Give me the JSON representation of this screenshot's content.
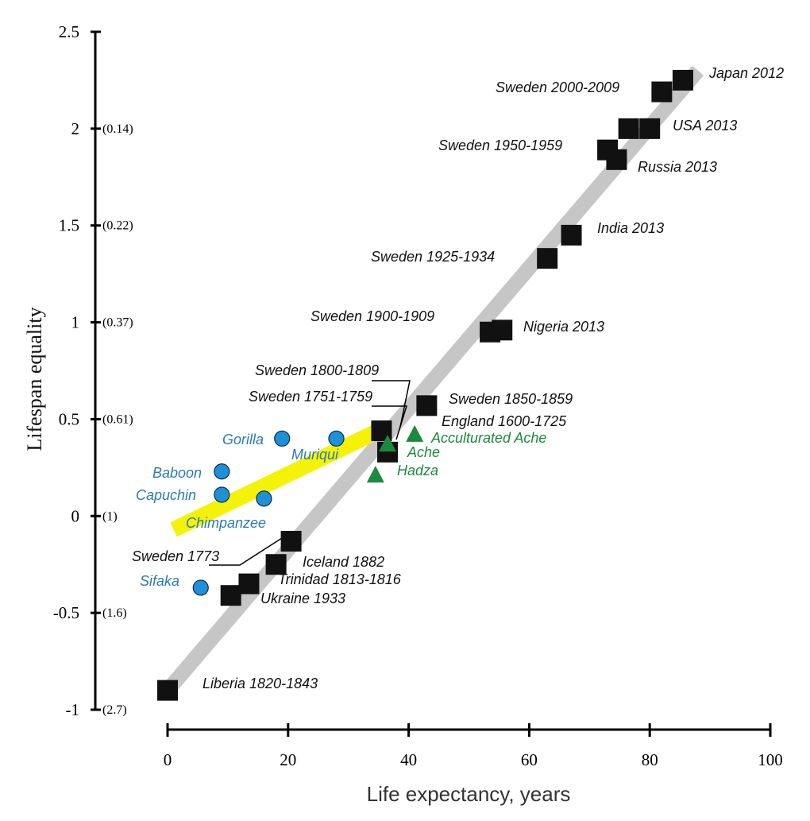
{
  "chart_data": {
    "type": "scatter",
    "xlabel": "Life expectancy, years",
    "ylabel": "Lifespan equality",
    "xlim": [
      0,
      100
    ],
    "ylim": [
      -1,
      2.5
    ],
    "x_ticks": [
      "0",
      "20",
      "40",
      "60",
      "80",
      "100"
    ],
    "y_ticks": [
      {
        "value": 2.5,
        "label": "2.5",
        "paren": ""
      },
      {
        "value": 2,
        "label": "2",
        "paren": "(0.14)"
      },
      {
        "value": 1.5,
        "label": "1.5",
        "paren": "(0.22)"
      },
      {
        "value": 1,
        "label": "1",
        "paren": "(0.37)"
      },
      {
        "value": 0.5,
        "label": "0.5",
        "paren": "(0.61)"
      },
      {
        "value": 0,
        "label": "0",
        "paren": "(1)"
      },
      {
        "value": -0.5,
        "label": "-0.5",
        "paren": "(1.6)"
      },
      {
        "value": -1,
        "label": "-1",
        "paren": "(2.7)"
      }
    ],
    "colors": {
      "human": "#111111",
      "primate": "#1e90d8",
      "primate_label": "#2a7ab8",
      "hunter_gatherer": "#1a8a3c",
      "human_trend": "#c6c6c6",
      "primate_trend": "#f5f20a"
    },
    "trend_lines": [
      {
        "name": "humans",
        "from": [
          0,
          -0.9
        ],
        "to": [
          88,
          2.3
        ]
      },
      {
        "name": "primates",
        "from": [
          1,
          -0.07
        ],
        "to": [
          35,
          0.44
        ]
      }
    ],
    "series": [
      {
        "name": "Human populations",
        "marker": "square",
        "points": [
          {
            "label": "Japan 2012",
            "x": 85.5,
            "y": 2.25
          },
          {
            "label": "Sweden 2000-2009",
            "x": 82,
            "y": 2.19
          },
          {
            "label": "USA 2013",
            "x": 80,
            "y": 2.0
          },
          {
            "label": "",
            "x": 76.5,
            "y": 2.0
          },
          {
            "label": "Sweden 1950-1959",
            "x": 73,
            "y": 1.89
          },
          {
            "label": "Russia 2013",
            "x": 74.5,
            "y": 1.84
          },
          {
            "label": "India 2013",
            "x": 67,
            "y": 1.45
          },
          {
            "label": "Sweden 1925-1934",
            "x": 63,
            "y": 1.33
          },
          {
            "label": "Nigeria 2013",
            "x": 55.5,
            "y": 0.96
          },
          {
            "label": "Sweden 1900-1909",
            "x": 53.5,
            "y": 0.95
          },
          {
            "label": "Sweden 1850-1859",
            "x": 43,
            "y": 0.57
          },
          {
            "label": "Sweden 1800-1809",
            "x": 35.5,
            "y": 0.44
          },
          {
            "label": "Sweden 1751-1759",
            "x": 36.5,
            "y": 0.33
          },
          {
            "label": "Sweden 1773",
            "x": 20.5,
            "y": -0.13
          },
          {
            "label": "Iceland 1882",
            "x": 18,
            "y": -0.25
          },
          {
            "label": "Trinidad 1813-1816",
            "x": 13.5,
            "y": -0.35
          },
          {
            "label": "Ukraine 1933",
            "x": 10.5,
            "y": -0.41
          },
          {
            "label": "Liberia 1820-1843",
            "x": 0,
            "y": -0.9
          }
        ]
      },
      {
        "name": "Non-human primates",
        "marker": "circle",
        "points": [
          {
            "label": "Gorilla",
            "x": 19,
            "y": 0.4
          },
          {
            "label": "Muriqui",
            "x": 28,
            "y": 0.4
          },
          {
            "label": "Baboon",
            "x": 9,
            "y": 0.23
          },
          {
            "label": "Capuchin",
            "x": 9,
            "y": 0.11
          },
          {
            "label": "Chimpanzee",
            "x": 16,
            "y": 0.09
          },
          {
            "label": "Sifaka",
            "x": 5.5,
            "y": -0.37
          }
        ]
      },
      {
        "name": "Hunter-gatherers",
        "marker": "triangle",
        "points": [
          {
            "label": "Acculturated Ache",
            "x": 41,
            "y": 0.42
          },
          {
            "label": "Ache",
            "x": 36.5,
            "y": 0.37
          },
          {
            "label": "Hadza",
            "x": 34.5,
            "y": 0.21
          }
        ]
      }
    ],
    "annotations": [
      {
        "text": "England 1600-1725",
        "x": 45,
        "y": 0.48
      }
    ]
  }
}
